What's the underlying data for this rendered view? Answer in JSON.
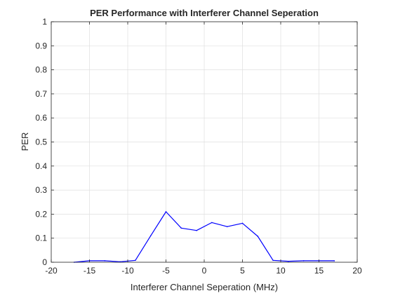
{
  "chart_data": {
    "type": "line",
    "title": "PER Performance with Interferer Channel Seperation",
    "xlabel": "Interferer Channel Seperation (MHz)",
    "ylabel": "PER",
    "xlim": [
      -20,
      20
    ],
    "ylim": [
      0,
      1
    ],
    "xticks": [
      "-20",
      "-15",
      "-10",
      "-5",
      "0",
      "5",
      "10",
      "15",
      "20"
    ],
    "yticks": [
      "0",
      "0.1",
      "0.2",
      "0.3",
      "0.4",
      "0.5",
      "0.6",
      "0.7",
      "0.8",
      "0.9",
      "1"
    ],
    "grid": true,
    "legend": "none",
    "series": [
      {
        "color": "#0000ff",
        "x": [
          -17,
          -15,
          -13,
          -11,
          -9,
          -7,
          -5,
          -3,
          -1,
          1,
          3,
          5,
          7,
          9,
          11,
          13,
          15,
          17
        ],
        "y": [
          0.0,
          0.006,
          0.006,
          0.002,
          0.008,
          0.11,
          0.21,
          0.142,
          0.132,
          0.165,
          0.148,
          0.162,
          0.108,
          0.008,
          0.004,
          0.006,
          0.006,
          0.006
        ]
      }
    ]
  }
}
